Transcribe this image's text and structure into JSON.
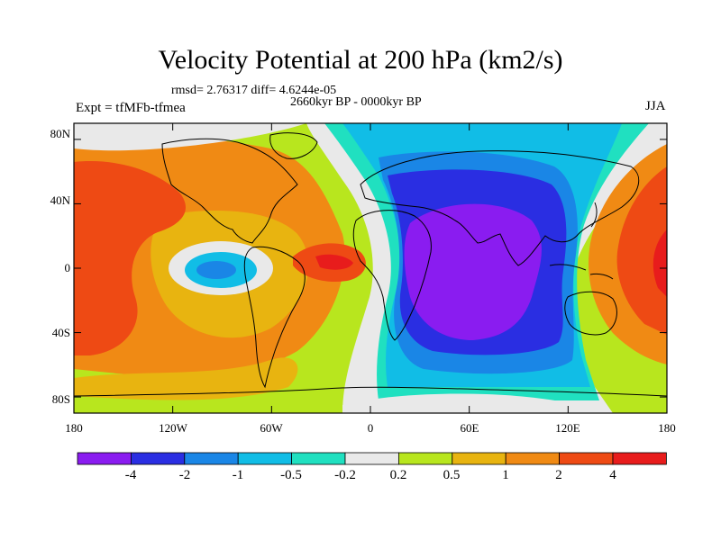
{
  "title": "Velocity Potential at 200 hPa (km2/s)",
  "stats": "rmsd= 2.76317 diff= 4.6244e-05",
  "period": "2660kyr BP - 0000kyr BP",
  "experiment": "Expt = tfMFb-tfmea",
  "season": "JJA",
  "lat_ticks": [
    "80N",
    "40N",
    "0",
    "40S",
    "80S"
  ],
  "lon_ticks": [
    "180",
    "120W",
    "60W",
    "0",
    "60E",
    "120E",
    "180"
  ],
  "colorbar": {
    "labels": [
      "-4",
      "-2",
      "-1",
      "-0.5",
      "-0.2",
      "0.2",
      "0.5",
      "1",
      "2",
      "4"
    ],
    "colors": [
      "#8a1cf0",
      "#2a2ee2",
      "#1a86e6",
      "#11bde6",
      "#20e0c0",
      "#e9e9e9",
      "#b8e61e",
      "#e8b410",
      "#f08a14",
      "#ee4a14",
      "#e81c1c"
    ]
  },
  "chart_data": {
    "type": "map",
    "projection": "cylindrical-equidistant",
    "xlim": [
      -180,
      180
    ],
    "ylim": [
      -90,
      90
    ],
    "contour_levels": [
      -4,
      -2,
      -1,
      -0.5,
      -0.2,
      0.2,
      0.5,
      1,
      2,
      4
    ]
  }
}
